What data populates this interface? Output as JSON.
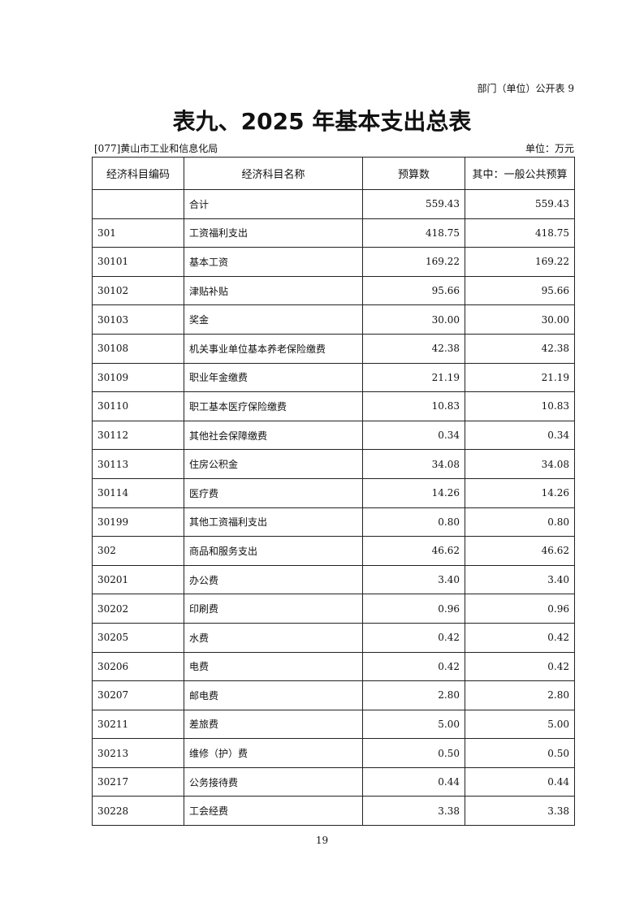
{
  "form_number": "部门（单位）公开表 9",
  "title": "表九、2025 年基本支出总表",
  "organization": "[077]黄山市工业和信息化局",
  "unit": "单位：万元",
  "table": {
    "headers": [
      "经济科目编码",
      "经济科目名称",
      "预算数",
      "其中：一般公共预算"
    ],
    "rows": [
      {
        "code": "",
        "name": "合计",
        "budget": "559.43",
        "general": "559.43"
      },
      {
        "code": "301",
        "name": "工资福利支出",
        "budget": "418.75",
        "general": "418.75"
      },
      {
        "code": "30101",
        "name": "基本工资",
        "budget": "169.22",
        "general": "169.22"
      },
      {
        "code": "30102",
        "name": "津贴补贴",
        "budget": "95.66",
        "general": "95.66"
      },
      {
        "code": "30103",
        "name": "奖金",
        "budget": "30.00",
        "general": "30.00"
      },
      {
        "code": "30108",
        "name": "机关事业单位基本养老保险缴费",
        "budget": "42.38",
        "general": "42.38"
      },
      {
        "code": "30109",
        "name": "职业年金缴费",
        "budget": "21.19",
        "general": "21.19"
      },
      {
        "code": "30110",
        "name": "职工基本医疗保险缴费",
        "budget": "10.83",
        "general": "10.83"
      },
      {
        "code": "30112",
        "name": "其他社会保障缴费",
        "budget": "0.34",
        "general": "0.34"
      },
      {
        "code": "30113",
        "name": "住房公积金",
        "budget": "34.08",
        "general": "34.08"
      },
      {
        "code": "30114",
        "name": "医疗费",
        "budget": "14.26",
        "general": "14.26"
      },
      {
        "code": "30199",
        "name": "其他工资福利支出",
        "budget": "0.80",
        "general": "0.80"
      },
      {
        "code": "302",
        "name": "商品和服务支出",
        "budget": "46.62",
        "general": "46.62"
      },
      {
        "code": "30201",
        "name": "办公费",
        "budget": "3.40",
        "general": "3.40"
      },
      {
        "code": "30202",
        "name": "印刷费",
        "budget": "0.96",
        "general": "0.96"
      },
      {
        "code": "30205",
        "name": "水费",
        "budget": "0.42",
        "general": "0.42"
      },
      {
        "code": "30206",
        "name": "电费",
        "budget": "0.42",
        "general": "0.42"
      },
      {
        "code": "30207",
        "name": "邮电费",
        "budget": "2.80",
        "general": "2.80"
      },
      {
        "code": "30211",
        "name": "差旅费",
        "budget": "5.00",
        "general": "5.00"
      },
      {
        "code": "30213",
        "name": "维修（护）费",
        "budget": "0.50",
        "general": "0.50"
      },
      {
        "code": "30217",
        "name": "公务接待费",
        "budget": "0.44",
        "general": "0.44"
      },
      {
        "code": "30228",
        "name": "工会经费",
        "budget": "3.38",
        "general": "3.38"
      }
    ]
  },
  "page_number": "19"
}
